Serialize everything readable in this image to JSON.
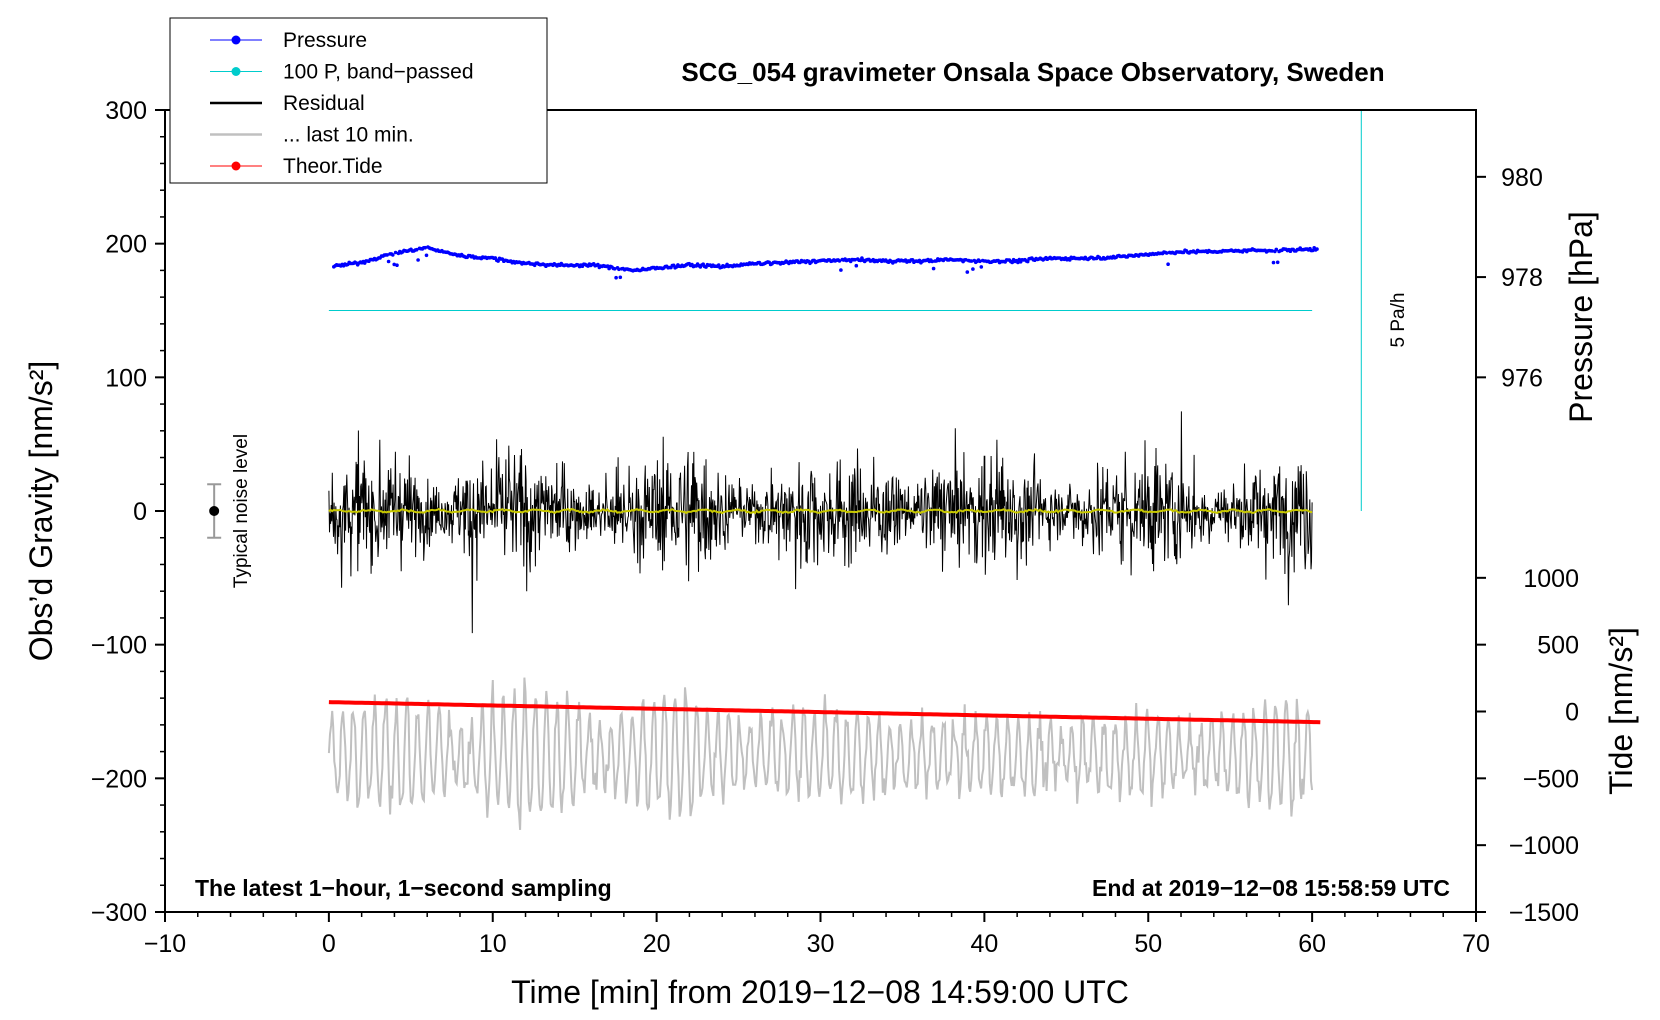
{
  "chart_data": {
    "type": "line",
    "title": "SCG_054 gravimeter Onsala Space Observatory, Sweden",
    "xlabel": "Time [min] from 2019−12−08 14:59:00 UTC",
    "ylabel_left": "Obs’d Gravity [nm/s²]",
    "ylabel_pressure": "Pressure [hPa]",
    "ylabel_tide": "Tide [nm/s²]",
    "xlim": [
      -10,
      70
    ],
    "ylim_left": [
      -300,
      300
    ],
    "x_ticks": [
      "−10",
      "0",
      "10",
      "20",
      "30",
      "40",
      "50",
      "60",
      "70"
    ],
    "y_left_ticks": [
      "−300",
      "−200",
      "−100",
      "0",
      "100",
      "200",
      "300"
    ],
    "pressure_ticks": [
      "976",
      "978",
      "980"
    ],
    "tide_ticks": [
      "−1500",
      "−1000",
      "−500",
      "0",
      "500",
      "1000"
    ],
    "pressure_axis": {
      "ticks": [
        976,
        978,
        980
      ],
      "gravity_at": [
        100,
        175,
        250
      ]
    },
    "tide_axis": {
      "ticks": [
        -1500,
        -1000,
        -500,
        0,
        500,
        1000
      ],
      "gravity_at": [
        -300,
        -250,
        -200,
        -150,
        -100,
        -50
      ]
    },
    "legend": [
      {
        "label": "Pressure",
        "color": "#0000ff",
        "marker": true
      },
      {
        "label": "100 P, band−passed",
        "color": "#00cccc",
        "marker": true
      },
      {
        "label": "Residual",
        "color": "#000000",
        "marker": false
      },
      {
        "label": "... last 10 min.",
        "color": "#c0c0c0",
        "marker": false
      },
      {
        "label": "Theor.Tide",
        "color": "#ff0000",
        "marker": true
      }
    ],
    "series": [
      {
        "name": "Pressure",
        "color": "#0000ff",
        "units": "nm/s2 (plot scale)",
        "x": [
          0.3,
          2,
          4,
          6,
          8,
          10,
          12,
          14,
          16,
          18,
          19,
          20,
          22,
          24,
          26,
          28,
          30,
          32,
          34,
          36,
          38,
          40,
          42,
          44,
          46,
          48,
          50,
          52,
          54,
          56,
          58,
          60.3
        ],
        "y": [
          183,
          186,
          193,
          197,
          191,
          189,
          185,
          184,
          184,
          181,
          180,
          182,
          184,
          183,
          185,
          186,
          187,
          188,
          187,
          187,
          188,
          187,
          187,
          189,
          189,
          190,
          192,
          194,
          194,
          195,
          195,
          196
        ]
      },
      {
        "name": "100 P, band−passed",
        "color": "#00cccc",
        "x": [
          0,
          60
        ],
        "y": [
          150,
          150
        ]
      },
      {
        "name": "Residual",
        "color": "#000000",
        "x_range": [
          0,
          60
        ],
        "envelope": 90,
        "mean": 0
      },
      {
        "name": "... last 10 min.",
        "color": "#c0c0c0",
        "x_range": [
          0,
          60
        ],
        "center": -180,
        "amplitude": 30
      },
      {
        "name": "Theor.Tide",
        "color": "#ff0000",
        "x": [
          0,
          60.5
        ],
        "y": [
          -143,
          -158
        ]
      }
    ],
    "bandpass_mean": {
      "name": "Residual mean (band-passed)",
      "color": "#c8c800",
      "x": [
        0,
        60
      ],
      "y": [
        0,
        0
      ]
    },
    "pa_per_hour_bar": {
      "label": "5 Pa/h",
      "x": 63,
      "y": [
        0,
        300
      ]
    },
    "noise_level": {
      "label": "Typical noise level",
      "x": -7,
      "center": 0,
      "half_range": 20
    },
    "annotations": {
      "bottom_left": "The latest 1−hour, 1−second sampling",
      "bottom_right": "End at 2019−12−08 15:58:59 UTC"
    }
  }
}
